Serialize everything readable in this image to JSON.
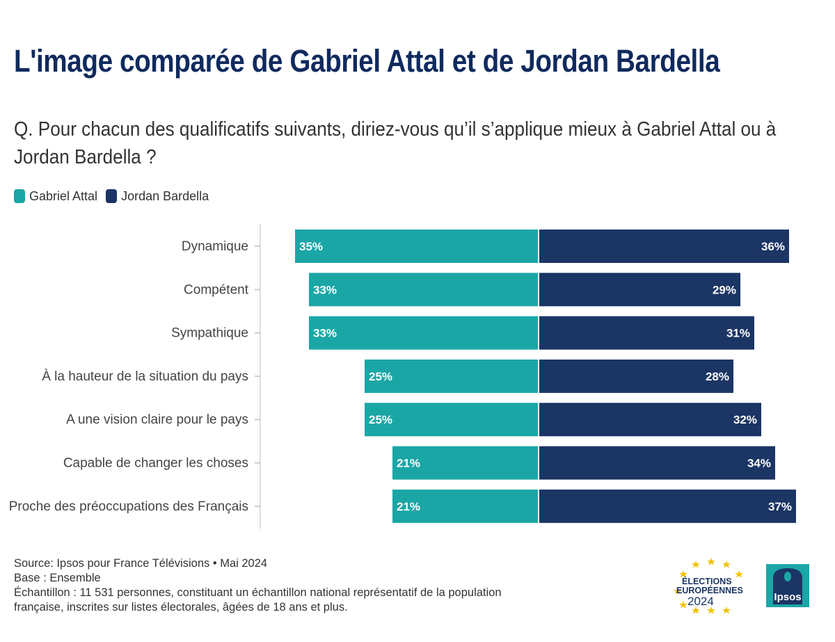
{
  "title": "L'image comparée de Gabriel Attal et de Jordan Bardella",
  "subtitle": "Q. Pour chacun des qualificatifs suivants, diriez-vous qu’il s’applique mieux à Gabriel Attal ou à Jordan Bardella ?",
  "legend": [
    {
      "label": "Gabriel Attal",
      "color": "#1ba6a6"
    },
    {
      "label": "Jordan Bardella",
      "color": "#1b3564"
    }
  ],
  "chart_data": {
    "type": "bar",
    "orientation": "horizontal-diverging",
    "categories": [
      "Dynamique",
      "Compétent",
      "Sympathique",
      "À la hauteur de la situation du pays",
      "A une vision claire pour le pays",
      "Capable de changer les choses",
      "Proche des préoccupations des Français"
    ],
    "series": [
      {
        "name": "Gabriel Attal",
        "values": [
          35,
          33,
          33,
          25,
          25,
          21,
          21
        ],
        "color": "#1ba6a6"
      },
      {
        "name": "Jordan Bardella",
        "values": [
          36,
          29,
          31,
          28,
          32,
          34,
          37
        ],
        "color": "#1b3564"
      }
    ],
    "unit": "%",
    "title": "L'image comparée de Gabriel Attal et de Jordan Bardella",
    "grid": false,
    "legend_position": "top-left"
  },
  "footer": {
    "source": "Source: Ipsos pour France Télévisions • Mai 2024",
    "base": "Base : Ensemble",
    "sample_line1": "Échantillon : 11 531 personnes, constituant un échantillon national représentatif de la population",
    "sample_line2": "française, inscrites sur listes électorales, âgées de 18 ans et plus."
  },
  "logos": {
    "elections_line1": "ÉLECTIONS",
    "elections_line2": "EUROPÉENNES",
    "elections_year": "2024",
    "ipsos": "Ipsos"
  }
}
